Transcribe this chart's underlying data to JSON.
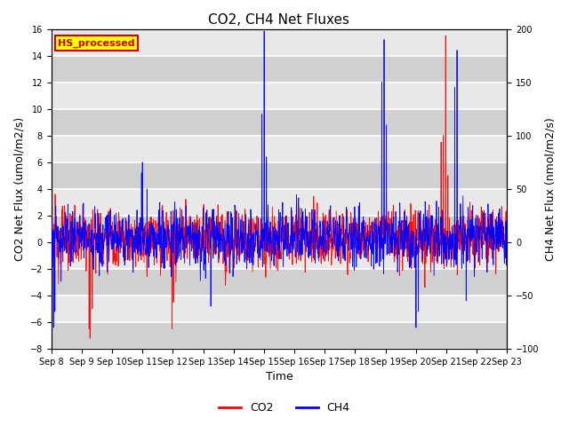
{
  "title": "CO2, CH4 Net Fluxes",
  "xlabel": "Time",
  "ylabel_left": "CO2 Net Flux (umol/m2/s)",
  "ylabel_right": "CH4 Net Flux (nmol/m2/s)",
  "ylim_left": [
    -8,
    16
  ],
  "ylim_right": [
    -100,
    200
  ],
  "yticks_left": [
    -8,
    -6,
    -4,
    -2,
    0,
    2,
    4,
    6,
    8,
    10,
    12,
    14,
    16
  ],
  "yticks_right": [
    -100,
    -50,
    0,
    50,
    100,
    150,
    200
  ],
  "co2_color": "#FF0000",
  "ch4_color": "#0000FF",
  "legend_label_co2": "CO2",
  "legend_label_ch4": "CH4",
  "watermark_text": "HS_processed",
  "watermark_color": "#CC0000",
  "watermark_bg": "#FFFF00",
  "plot_bg_light": "#E8E8E8",
  "plot_bg_dark": "#D0D0D0",
  "grid_color": "#FFFFFF",
  "title_fontsize": 11,
  "axis_label_fontsize": 9,
  "tick_fontsize": 7,
  "legend_fontsize": 9,
  "n_points": 2000,
  "seed": 123
}
